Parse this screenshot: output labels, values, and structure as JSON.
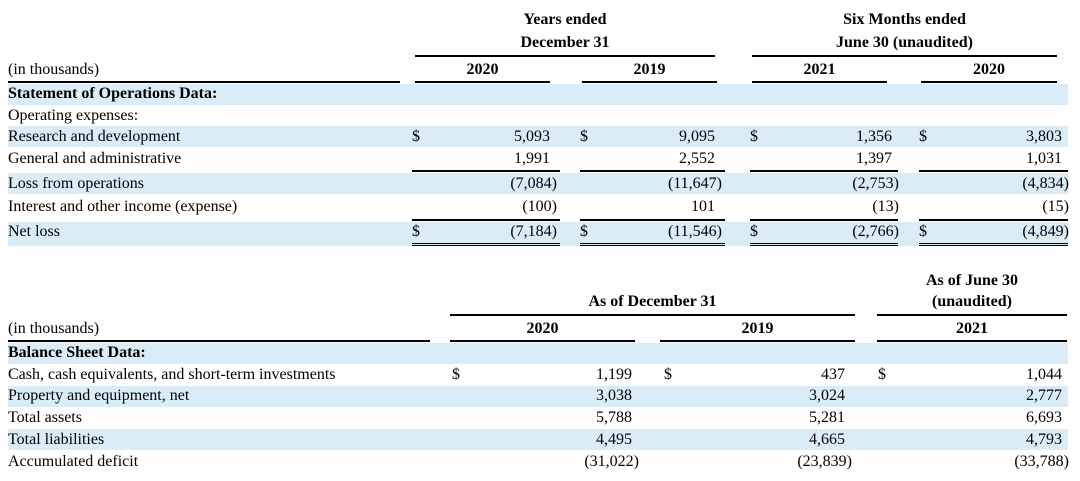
{
  "ops": {
    "header": {
      "group1": [
        "Years ended",
        "December 31"
      ],
      "group2": [
        "Six Months ended",
        "June 30 (unaudited)"
      ],
      "unit_label": "(in thousands)",
      "years": [
        "2020",
        "2019",
        "2021",
        "2020"
      ]
    },
    "section_title": "Statement of Operations Data:",
    "subhead": "Operating expenses:",
    "currency": "$",
    "rows": [
      {
        "label": "Research and development",
        "values": [
          "5,093",
          "9,095",
          "1,356",
          "3,803"
        ]
      },
      {
        "label": "General and administrative",
        "values": [
          "1,991",
          "2,552",
          "1,397",
          "1,031"
        ]
      },
      {
        "label": "Loss from operations",
        "values": [
          "(7,084)",
          "(11,647)",
          "(2,753)",
          "(4,834)"
        ]
      },
      {
        "label": "Interest and other income (expense)",
        "values": [
          "(100)",
          "101",
          "(13)",
          "(15)"
        ]
      },
      {
        "label": "Net loss",
        "values": [
          "(7,184)",
          "(11,546)",
          "(2,766)",
          "(4,849)"
        ]
      }
    ]
  },
  "bs": {
    "header": {
      "group1": [
        "As of December 31"
      ],
      "group2": [
        "As of June 30",
        "(unaudited)"
      ],
      "unit_label": "(in thousands)",
      "years": [
        "2020",
        "2019",
        "2021"
      ]
    },
    "section_title": "Balance Sheet Data:",
    "currency": "$",
    "rows": [
      {
        "label": "Cash, cash equivalents, and short-term investments",
        "values": [
          "1,199",
          "437",
          "1,044"
        ]
      },
      {
        "label": "Property and equipment, net",
        "values": [
          "3,038",
          "3,024",
          "2,777"
        ]
      },
      {
        "label": "Total assets",
        "values": [
          "5,788",
          "5,281",
          "6,693"
        ]
      },
      {
        "label": "Total liabilities",
        "values": [
          "4,495",
          "4,665",
          "4,793"
        ]
      },
      {
        "label": "Accumulated deficit",
        "values": [
          "(31,022)",
          "(23,839)",
          "(33,788)"
        ]
      }
    ]
  }
}
